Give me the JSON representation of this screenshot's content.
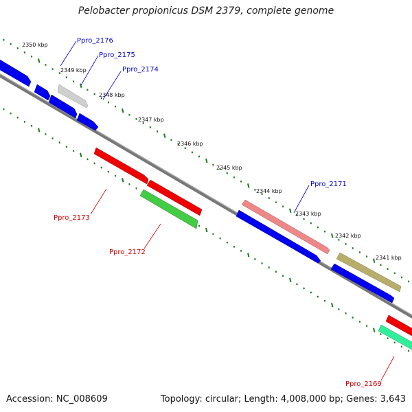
{
  "header": {
    "title": "Pelobacter propionicus DSM 2379, complete genome"
  },
  "footer": {
    "accession": "Accession: NC_008609",
    "summary": "Topology: circular; Length: 4,008,000 bp; Genes: 3,643"
  },
  "scale_labels": [
    "2350 kbp",
    "2349 kbp",
    "2348 kbp",
    "2347 kbp",
    "2346 kbp",
    "2345 kbp",
    "2344 kbp",
    "2343 kbp",
    "2342 kbp",
    "2341 kbp"
  ],
  "gene_labels": {
    "forward": [
      "Ppro_2176",
      "Ppro_2175",
      "Ppro_2174",
      "Ppro_2171"
    ],
    "reverse": [
      "Ppro_2173",
      "Ppro_2172",
      "Ppro_2169"
    ]
  },
  "colors": {
    "forward_label": "#0000cc",
    "reverse_label": "#cc0000",
    "tick": "#1a7a1a",
    "backbone": "#808080",
    "blue": "#0000ee",
    "gray": "#c8c8c8",
    "pink": "#ee8888",
    "olive": "#b8ad6a",
    "red": "#ee0000",
    "green": "#44cc44",
    "aqua": "#33ee99"
  }
}
